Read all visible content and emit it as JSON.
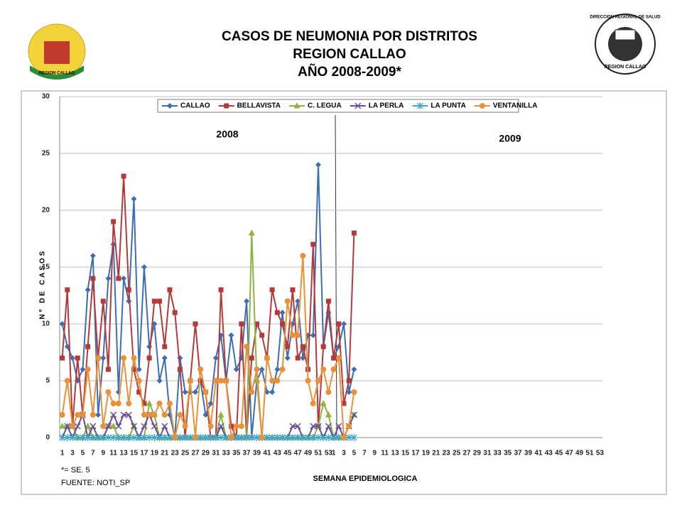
{
  "chart_data": {
    "type": "line",
    "title": [
      "CASOS DE NEUMONIA POR DISTRITOS",
      "REGION CALLAO",
      "AÑO 2008-2009*"
    ],
    "y_label": "Nº DE CASOS",
    "x_label": "SEMANA EPIDEMIOLOGICA",
    "annotations": [
      "2008",
      "2009"
    ],
    "footnotes": [
      "*= SE. 5",
      "FUENTE: NOTI_SP"
    ],
    "logos": [
      "REGION CALLAO",
      "DIRECCION REGIONAL DE SALUD",
      "REGION CALLAO"
    ],
    "categories": [
      1,
      null,
      3,
      null,
      5,
      null,
      7,
      null,
      9,
      null,
      11,
      null,
      13,
      null,
      15,
      null,
      17,
      null,
      19,
      null,
      21,
      null,
      23,
      null,
      25,
      null,
      27,
      null,
      29,
      null,
      31,
      null,
      33,
      null,
      35,
      null,
      37,
      null,
      39,
      null,
      41,
      null,
      43,
      null,
      45,
      null,
      47,
      null,
      49,
      null,
      51,
      null,
      53,
      1,
      null,
      3,
      null,
      5,
      null,
      7,
      null,
      9,
      null,
      11,
      null,
      13,
      null,
      15,
      null,
      17,
      null,
      19,
      null,
      21,
      null,
      23,
      null,
      25,
      null,
      27,
      null,
      29,
      null,
      31,
      null,
      33,
      null,
      35,
      null,
      37,
      null,
      39,
      null,
      41,
      null,
      43,
      null,
      45,
      null,
      47,
      null,
      49,
      null,
      51,
      null,
      53
    ],
    "ylim": [
      0,
      30
    ],
    "yticks": [
      0,
      5,
      10,
      15,
      20,
      25,
      30
    ],
    "grid": true,
    "legend": "top",
    "series": [
      {
        "name": "CALLAO",
        "color": "#3d6eb4",
        "marker": "diamond",
        "values": [
          10,
          8,
          7,
          5,
          6,
          13,
          16,
          2,
          7,
          14,
          17,
          4,
          14,
          12,
          21,
          6,
          15,
          8,
          10,
          5,
          7,
          2,
          0,
          7,
          4,
          4,
          4,
          5,
          2,
          3,
          7,
          9,
          5,
          9,
          6,
          7,
          12,
          0,
          5,
          6,
          4,
          4,
          6,
          11,
          7,
          10,
          12,
          7,
          9,
          9,
          24,
          8,
          11,
          7,
          8,
          10,
          4,
          6,
          null,
          null,
          null,
          null,
          null,
          null,
          null,
          null,
          null,
          null,
          null,
          null,
          null,
          null,
          null,
          null,
          null,
          null,
          null,
          null,
          null,
          null,
          null,
          null,
          null,
          null,
          null,
          null,
          null,
          null,
          null,
          null,
          null,
          null,
          null,
          null,
          null,
          null,
          null,
          null,
          null,
          null,
          null,
          null,
          null,
          null,
          null,
          null
        ]
      },
      {
        "name": "BELLAVISTA",
        "color": "#b33a3a",
        "marker": "square",
        "values": [
          7,
          13,
          1,
          7,
          2,
          8,
          14,
          7,
          12,
          6,
          19,
          14,
          23,
          13,
          6,
          4,
          3,
          7,
          12,
          12,
          8,
          13,
          11,
          6,
          0,
          5,
          10,
          5,
          4,
          0,
          0,
          13,
          5,
          1,
          0,
          10,
          0,
          7,
          10,
          9,
          7,
          13,
          11,
          10,
          8,
          13,
          7,
          8,
          6,
          17,
          1,
          8,
          12,
          7,
          10,
          3,
          5,
          18,
          null,
          null,
          null,
          null,
          null,
          null,
          null,
          null,
          null,
          null,
          null,
          null,
          null,
          null,
          null,
          null,
          null,
          null,
          null,
          null,
          null,
          null,
          null,
          null,
          null,
          null,
          null,
          null,
          null,
          null,
          null,
          null,
          null,
          null,
          null,
          null,
          null,
          null,
          null,
          null,
          null,
          null,
          null,
          null,
          null,
          null,
          null,
          null
        ]
      },
      {
        "name": "C. LEGUA",
        "color": "#8db441",
        "marker": "triangle",
        "values": [
          1,
          1,
          1,
          0,
          0,
          1,
          0,
          0,
          0,
          1,
          1,
          0,
          0,
          0,
          1,
          0,
          0,
          3,
          2,
          0,
          0,
          0,
          0,
          0,
          0,
          0,
          0,
          0,
          0,
          0,
          0,
          2,
          0,
          0,
          0,
          0,
          0,
          18,
          5,
          0,
          0,
          0,
          0,
          0,
          0,
          0,
          0,
          0,
          0,
          0,
          1,
          3,
          2,
          0,
          0,
          0,
          1,
          2,
          null,
          null,
          null,
          null,
          null,
          null,
          null,
          null,
          null,
          null,
          null,
          null,
          null,
          null,
          null,
          null,
          null,
          null,
          null,
          null,
          null,
          null,
          null,
          null,
          null,
          null,
          null,
          null,
          null,
          null,
          null,
          null,
          null,
          null,
          null,
          null,
          null,
          null,
          null,
          null,
          null,
          null,
          null,
          null,
          null,
          null,
          null,
          null
        ]
      },
      {
        "name": "LA PERLA",
        "color": "#6b4c9a",
        "marker": "x",
        "values": [
          0,
          1,
          0,
          1,
          2,
          0,
          1,
          0,
          0,
          1,
          2,
          1,
          2,
          2,
          1,
          0,
          1,
          2,
          1,
          0,
          1,
          0,
          0,
          0,
          0,
          0,
          0,
          0,
          0,
          0,
          0,
          1,
          0,
          0,
          0,
          0,
          0,
          0,
          0,
          0,
          0,
          0,
          0,
          0,
          0,
          1,
          1,
          0,
          0,
          1,
          1,
          0,
          1,
          0,
          1,
          0,
          1,
          2,
          null,
          null,
          null,
          null,
          null,
          null,
          null,
          null,
          null,
          null,
          null,
          null,
          null,
          null,
          null,
          null,
          null,
          null,
          null,
          null,
          null,
          null,
          null,
          null,
          null,
          null,
          null,
          null,
          null,
          null,
          null,
          null,
          null,
          null,
          null,
          null,
          null,
          null,
          null,
          null,
          null,
          null,
          null,
          null,
          null,
          null,
          null,
          null
        ]
      },
      {
        "name": "LA PUNTA",
        "color": "#3fa8c9",
        "marker": "star",
        "values": [
          0,
          0,
          0,
          0,
          0,
          0,
          0,
          0,
          0,
          0,
          0,
          0,
          0,
          0,
          0,
          0,
          0,
          0,
          0,
          0,
          0,
          0,
          0,
          0,
          0,
          0,
          0,
          0,
          0,
          0,
          0,
          0,
          0,
          0,
          0,
          0,
          0,
          0,
          0,
          0,
          0,
          0,
          0,
          0,
          0,
          0,
          0,
          0,
          0,
          0,
          0,
          0,
          0,
          0,
          0,
          0,
          0,
          0,
          null,
          null,
          null,
          null,
          null,
          null,
          null,
          null,
          null,
          null,
          null,
          null,
          null,
          null,
          null,
          null,
          null,
          null,
          null,
          null,
          null,
          null,
          null,
          null,
          null,
          null,
          null,
          null,
          null,
          null,
          null,
          null,
          null,
          null,
          null,
          null,
          null,
          null,
          null,
          null,
          null,
          null,
          null,
          null,
          null,
          null,
          null,
          null
        ]
      },
      {
        "name": "VENTANILLA",
        "color": "#e8913a",
        "marker": "circle",
        "values": [
          2,
          5,
          1,
          2,
          2,
          6,
          2,
          7,
          1,
          4,
          3,
          3,
          7,
          3,
          7,
          5,
          2,
          2,
          2,
          3,
          2,
          3,
          0,
          2,
          1,
          5,
          0,
          6,
          4,
          1,
          5,
          5,
          5,
          0,
          1,
          1,
          8,
          4,
          6,
          0,
          7,
          5,
          5,
          6,
          12,
          9,
          9,
          16,
          5,
          3,
          5,
          6,
          4,
          6,
          7,
          0,
          1,
          4,
          null,
          null,
          null,
          null,
          null,
          null,
          null,
          null,
          null,
          null,
          null,
          null,
          null,
          null,
          null,
          null,
          null,
          null,
          null,
          null,
          null,
          null,
          null,
          null,
          null,
          null,
          null,
          null,
          null,
          null,
          null,
          null,
          null,
          null,
          null,
          null,
          null,
          null,
          null,
          null,
          null,
          null,
          null,
          null,
          null,
          null,
          null,
          null
        ]
      }
    ]
  }
}
